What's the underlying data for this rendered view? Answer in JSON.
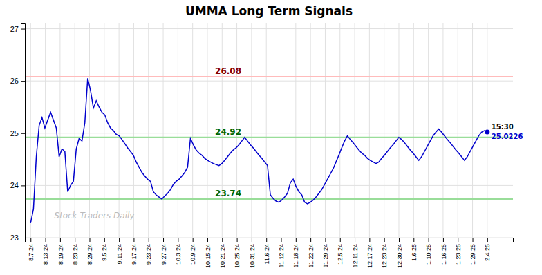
{
  "chart_data": {
    "type": "line",
    "title": "UMMA Long Term Signals",
    "color": "#0000cc",
    "values": [
      23.28,
      23.55,
      24.55,
      25.15,
      25.3,
      25.1,
      25.25,
      25.4,
      25.25,
      25.1,
      24.55,
      24.7,
      24.65,
      23.88,
      24.0,
      24.08,
      24.7,
      24.9,
      24.85,
      25.2,
      26.05,
      25.82,
      25.48,
      25.62,
      25.5,
      25.4,
      25.35,
      25.2,
      25.1,
      25.05,
      24.98,
      24.95,
      24.88,
      24.8,
      24.72,
      24.65,
      24.58,
      24.45,
      24.35,
      24.25,
      24.18,
      24.12,
      24.08,
      23.88,
      23.82,
      23.78,
      23.74,
      23.8,
      23.85,
      23.92,
      24.02,
      24.08,
      24.12,
      24.18,
      24.25,
      24.35,
      24.9,
      24.78,
      24.68,
      24.62,
      24.58,
      24.52,
      24.48,
      24.45,
      24.42,
      24.4,
      24.38,
      24.42,
      24.48,
      24.55,
      24.62,
      24.68,
      24.72,
      24.78,
      24.85,
      24.92,
      24.85,
      24.78,
      24.72,
      24.65,
      24.58,
      24.52,
      24.45,
      24.38,
      23.82,
      23.75,
      23.7,
      23.68,
      23.72,
      23.78,
      23.85,
      24.05,
      24.12,
      23.98,
      23.88,
      23.82,
      23.68,
      23.65,
      23.68,
      23.72,
      23.78,
      23.85,
      23.92,
      24.02,
      24.12,
      24.22,
      24.32,
      24.45,
      24.58,
      24.72,
      24.85,
      24.95,
      24.88,
      24.82,
      24.75,
      24.68,
      24.62,
      24.58,
      24.52,
      24.48,
      24.45,
      24.42,
      24.45,
      24.52,
      24.58,
      24.65,
      24.72,
      24.78,
      24.85,
      24.92,
      24.88,
      24.82,
      24.75,
      24.68,
      24.62,
      24.55,
      24.48,
      24.55,
      24.65,
      24.75,
      24.85,
      24.95,
      25.02,
      25.08,
      25.02,
      24.95,
      24.88,
      24.82,
      24.75,
      24.68,
      24.62,
      24.55,
      24.48,
      24.55,
      24.65,
      24.75,
      24.85,
      24.95,
      25.02,
      25.05,
      25.0226
    ],
    "xlim": [
      -2,
      169
    ],
    "xticks": [
      {
        "value": 0,
        "label": "8.7.24"
      },
      {
        "value": 5.161290322580645,
        "label": "8.13.24"
      },
      {
        "value": 10.32258064516129,
        "label": "8.19.24"
      },
      {
        "value": 15.483870967741936,
        "label": "8.23.24"
      },
      {
        "value": 20.64516129032258,
        "label": "8.29.24"
      },
      {
        "value": 25.806451612903224,
        "label": "9.5.24"
      },
      {
        "value": 30.967741935483872,
        "label": "9.11.24"
      },
      {
        "value": 36.12903225806452,
        "label": "9.17.24"
      },
      {
        "value": 41.29032258064516,
        "label": "9.23.24"
      },
      {
        "value": 46.45161290322581,
        "label": "9.27.24"
      },
      {
        "value": 51.61290322580645,
        "label": "10.3.24"
      },
      {
        "value": 56.774193548387096,
        "label": "10.9.24"
      },
      {
        "value": 61.935483870967744,
        "label": "10.15.24"
      },
      {
        "value": 67.09677419354838,
        "label": "10.21.24"
      },
      {
        "value": 72.25806451612904,
        "label": "10.25.24"
      },
      {
        "value": 77.41935483870968,
        "label": "10.31.24"
      },
      {
        "value": 82.58064516129032,
        "label": "11.6.24"
      },
      {
        "value": 87.74193548387096,
        "label": "11.12.24"
      },
      {
        "value": 92.90322580645162,
        "label": "11.18.24"
      },
      {
        "value": 98.06451612903226,
        "label": "11.22.24"
      },
      {
        "value": 103.2258064516129,
        "label": "11.29.24"
      },
      {
        "value": 108.38709677419355,
        "label": "12.5.24"
      },
      {
        "value": 113.54838709677419,
        "label": "12.11.24"
      },
      {
        "value": 118.70967741935483,
        "label": "12.17.24"
      },
      {
        "value": 123.87096774193549,
        "label": "12.23.24"
      },
      {
        "value": 129.03225806451613,
        "label": "12.30.24"
      },
      {
        "value": 134.19354838709677,
        "label": "1.6.25"
      },
      {
        "value": 139.3548387096774,
        "label": "1.10.25"
      },
      {
        "value": 144.51612903225808,
        "label": "1.16.25"
      },
      {
        "value": 149.67741935483872,
        "label": "1.23.25"
      },
      {
        "value": 154.83870967741936,
        "label": "1.29.25"
      },
      {
        "value": 160,
        "label": "2.4.25"
      }
    ],
    "ylim": [
      23.0,
      27.1
    ],
    "yticks": [
      23,
      24,
      25,
      26,
      27
    ],
    "grid": true,
    "reference_lines": [
      {
        "value": 26.08,
        "label": "26.08",
        "color": "#ffbbbb",
        "label_color": "#880000"
      },
      {
        "value": 24.92,
        "label": "24.92",
        "color": "#99dd99",
        "label_color": "#006600"
      },
      {
        "value": 23.74,
        "label": "23.74",
        "color": "#99dd99",
        "label_color": "#006600"
      }
    ],
    "last_label": "15:30",
    "last_value_label": "25.0226",
    "watermark": "Stock Traders Daily"
  }
}
